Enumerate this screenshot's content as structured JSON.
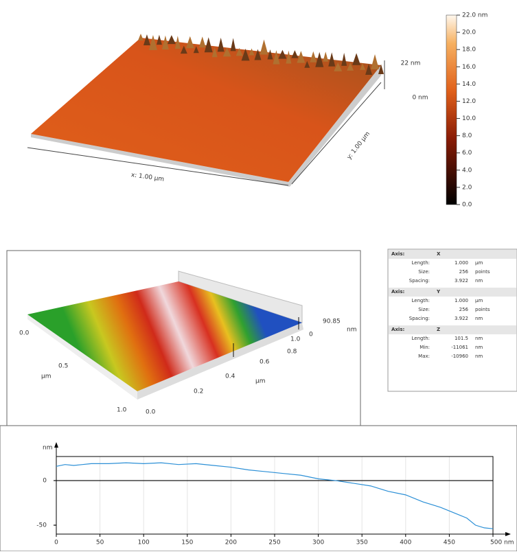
{
  "surface_3d": {
    "z_labels": [
      "22 nm",
      "0 nm"
    ],
    "x_label": "x: 1.00 µm",
    "y_label": "y: 1.00 µm"
  },
  "perspective_3d": {
    "labels": [
      "0.0",
      "0.5",
      "µm",
      "1.0",
      "0.0",
      "0.2",
      "0.4",
      "µm",
      "0.6",
      "0.8",
      "1.0",
      "0",
      "90.85",
      "nm"
    ]
  },
  "table": {
    "sections": [
      {
        "header": [
          "Axis:",
          "X"
        ],
        "rows": [
          [
            "Length:",
            "1.000",
            "µm"
          ],
          [
            "Size:",
            "256",
            "points"
          ],
          [
            "Spacing:",
            "3.922",
            "nm"
          ]
        ]
      },
      {
        "header": [
          "Axis:",
          "Y"
        ],
        "rows": [
          [
            "Length:",
            "1.000",
            "µm"
          ],
          [
            "Size:",
            "256",
            "points"
          ],
          [
            "Spacing:",
            "3.922",
            "nm"
          ]
        ]
      },
      {
        "header": [
          "Axis:",
          "Z"
        ],
        "rows": [
          [
            "Length:",
            "101.5",
            "nm"
          ],
          [
            "Min:",
            "-11061",
            "nm"
          ],
          [
            "Max:",
            "-10960",
            "nm"
          ]
        ]
      }
    ]
  },
  "chart_data": [
    {
      "type": "colorbar",
      "ylim": [
        0,
        22
      ],
      "yticks": [
        {
          "value": 22,
          "label": "22.0 nm"
        },
        {
          "value": 20,
          "label": "20.0"
        },
        {
          "value": 18,
          "label": "18.0"
        },
        {
          "value": 16,
          "label": "16.0"
        },
        {
          "value": 14,
          "label": "14.0"
        },
        {
          "value": 12,
          "label": "12.0"
        },
        {
          "value": 10,
          "label": "10.0"
        },
        {
          "value": 8,
          "label": "8.0"
        },
        {
          "value": 6,
          "label": "6.0"
        },
        {
          "value": 4,
          "label": "4.0"
        },
        {
          "value": 2,
          "label": "2.0"
        },
        {
          "value": 0,
          "label": "0.0"
        }
      ]
    },
    {
      "type": "line",
      "y_label": "nm",
      "xlim": [
        0,
        500
      ],
      "ylim": [
        -60,
        27
      ],
      "grid": true,
      "xticks": [
        0,
        50,
        100,
        150,
        200,
        250,
        300,
        350,
        400,
        450,
        {
          "value": 500,
          "label": "500 nm"
        }
      ],
      "yticks": [
        -50,
        0
      ],
      "x": [
        0,
        10,
        20,
        30,
        40,
        60,
        80,
        100,
        120,
        140,
        160,
        180,
        200,
        220,
        240,
        260,
        280,
        300,
        320,
        340,
        360,
        380,
        400,
        420,
        440,
        460,
        470,
        480,
        490,
        500
      ],
      "series": [
        {
          "color": "#2b8fd6",
          "values": [
            16,
            18,
            17,
            18,
            19,
            19,
            20,
            19,
            20,
            18,
            19,
            17,
            15,
            12,
            10,
            8,
            6,
            2,
            0,
            -3,
            -6,
            -12,
            -16,
            -24,
            -30,
            -38,
            -42,
            -50,
            -53,
            -54
          ]
        }
      ]
    }
  ]
}
